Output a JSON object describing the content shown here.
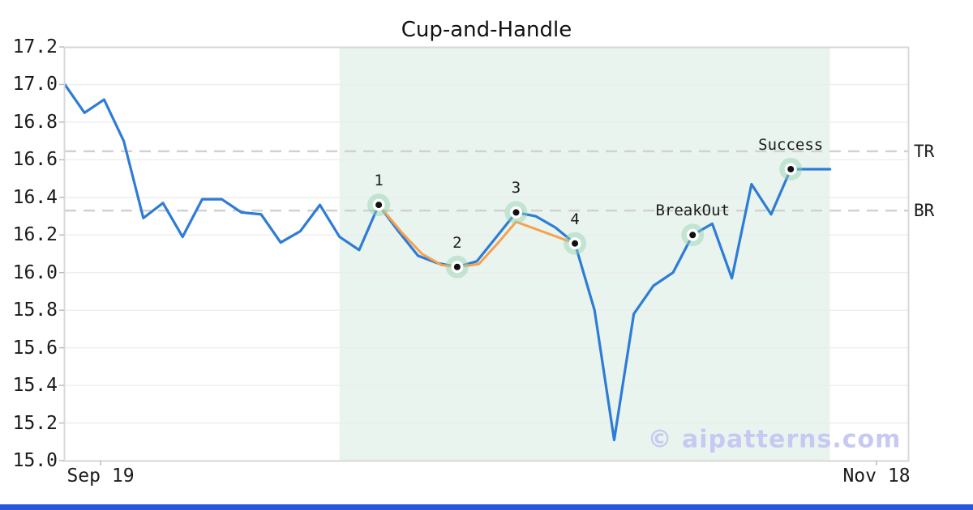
{
  "title": "Cup-and-Handle",
  "watermark": "© aipatterns.com",
  "colors": {
    "price_line": "#2e7cd6",
    "pattern_line": "#f5a14e",
    "marker_halo": "rgba(146,208,176,0.45)",
    "marker_dot": "#111111",
    "region_fill": "#e9f4ee",
    "dashed_level": "#d1d1d1",
    "grid": "#ececec",
    "spine": "#d8d8d8",
    "tick_mark": "#b8b8b8",
    "text": "#1a1a1a",
    "watermark_color": "#c7c9f2",
    "bottom_bar": "#2757da"
  },
  "axes": {
    "y_ticks": [
      "17.2",
      "17.0",
      "16.8",
      "16.6",
      "16.4",
      "16.2",
      "16.0",
      "15.8",
      "15.6",
      "15.4",
      "15.2",
      "15.0"
    ],
    "x_labels": [
      "Sep 19",
      "Nov 18"
    ]
  },
  "chart_data": {
    "type": "line",
    "title": "Cup-and-Handle",
    "ylim": [
      15.0,
      17.2
    ],
    "x_axis": {
      "start_label": "Sep 19",
      "end_label": "Nov 18"
    },
    "grid": "horizontal",
    "series": [
      {
        "name": "price",
        "color": "#2e7cd6",
        "values": [
          17.0,
          16.85,
          16.92,
          16.7,
          16.29,
          16.37,
          16.19,
          16.39,
          16.39,
          16.32,
          16.31,
          16.16,
          16.22,
          16.36,
          16.19,
          16.12,
          16.36,
          16.22,
          16.09,
          16.05,
          16.03,
          16.06,
          16.19,
          16.32,
          16.3,
          16.24,
          16.155,
          15.8,
          15.11,
          15.78,
          15.93,
          16.0,
          16.2,
          16.26,
          15.97,
          16.47,
          16.31,
          16.55,
          16.55,
          16.55
        ]
      },
      {
        "name": "pattern",
        "color": "#f5a14e",
        "points": [
          [
            16,
            16.36
          ],
          [
            17.2,
            16.21
          ],
          [
            18.2,
            16.1
          ],
          [
            19.2,
            16.04
          ],
          [
            20,
            16.03
          ],
          [
            21.1,
            16.045
          ],
          [
            22.1,
            16.16
          ],
          [
            23,
            16.27
          ],
          [
            26,
            16.155
          ]
        ]
      }
    ],
    "markers": [
      {
        "label": "1",
        "index": 16,
        "value": 16.36
      },
      {
        "label": "2",
        "index": 20,
        "value": 16.03
      },
      {
        "label": "3",
        "index": 23,
        "value": 16.32
      },
      {
        "label": "4",
        "index": 26,
        "value": 16.155
      },
      {
        "label": "BreakOut",
        "index": 32,
        "value": 16.2
      },
      {
        "label": "Success",
        "index": 37,
        "value": 16.55
      }
    ],
    "levels": [
      {
        "label": "TR",
        "value": 16.645
      },
      {
        "label": "BR",
        "value": 16.33
      }
    ],
    "region": {
      "start_index": 14,
      "end_index": 39
    }
  }
}
